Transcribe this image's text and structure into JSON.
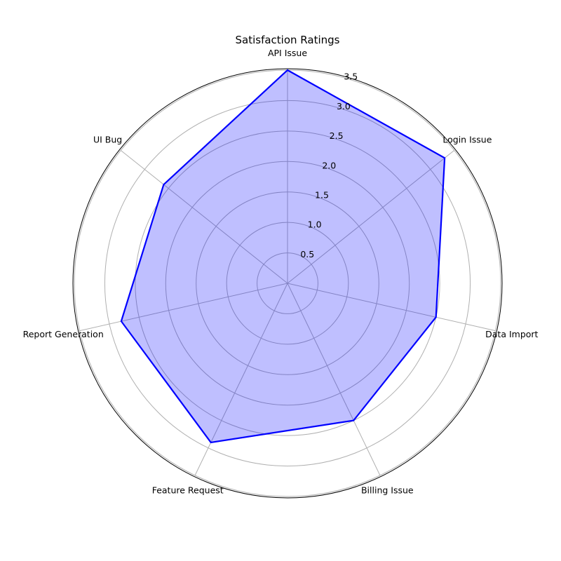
{
  "chart_data": {
    "type": "radar",
    "title": "Satisfaction Ratings",
    "categories": [
      "API Issue",
      "Login Issue",
      "Data Import",
      "Billing Issue",
      "Feature Request",
      "Report Generation",
      "UI Bug"
    ],
    "series": [
      {
        "values": [
          3.5,
          3.3,
          2.5,
          2.5,
          2.9,
          2.8,
          2.6
        ]
      }
    ],
    "rlim": [
      0,
      3.5
    ],
    "rticks": [
      "0.5",
      "1.0",
      "1.5",
      "2.0",
      "2.5",
      "3.0",
      "3.5"
    ],
    "grid": true,
    "colors": {
      "line": "#0000ff",
      "fill": "#0000ff",
      "fill_opacity": 0.25,
      "grid": "#b0b0b0"
    }
  }
}
